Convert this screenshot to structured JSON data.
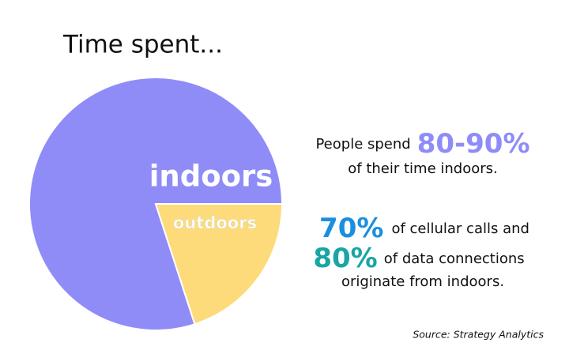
{
  "chart_data": {
    "type": "pie",
    "title": "Time spent...",
    "categories": [
      "indoors",
      "outdoors"
    ],
    "values": [
      80,
      20
    ],
    "colors": [
      "#8f8cf8",
      "#fddb7a"
    ],
    "annotations": {
      "line1": [
        "People spend",
        "80-90%"
      ],
      "line2": "of their time indoors.",
      "line3": [
        "70%",
        "of cellular calls and"
      ],
      "line4": [
        "80%",
        "of data connections"
      ],
      "line5": "originate from indoors.",
      "source": "Source: Strategy Analytics"
    }
  }
}
